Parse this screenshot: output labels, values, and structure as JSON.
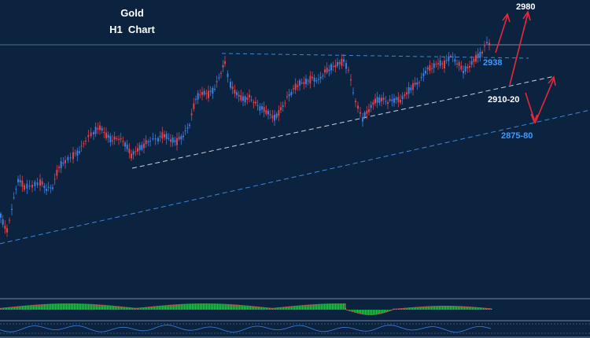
{
  "chart_data": {
    "type": "candlestick",
    "title": "Gold",
    "subtitle": "H1  Chart",
    "instrument": "Gold",
    "timeframe": "H1",
    "colors": {
      "background": "#0c2340",
      "bull": "#3d7fe0",
      "bear": "#e0414b",
      "support_line": "#c9d2dc",
      "channel_line": "#3f86d8",
      "arrow": "#e8283a",
      "label_white": "#ffffff",
      "label_blue": "#3d9bff",
      "histogram": "#2fbf5a"
    },
    "levels": [
      {
        "id": "target",
        "label": "2980",
        "price": 2980,
        "color": "white"
      },
      {
        "id": "resistance",
        "label": "2938",
        "price": 2938,
        "color": "blue"
      },
      {
        "id": "support",
        "label": "2910-20",
        "price": 2915,
        "color": "white"
      },
      {
        "id": "lower_support",
        "label": "2875-80",
        "price": 2877,
        "color": "blue"
      }
    ],
    "close_approx": 2955,
    "trendlines": [
      {
        "name": "resistance-trendline",
        "style": "dashed",
        "color": "blue"
      },
      {
        "name": "ascending-support",
        "style": "dashed",
        "color": "white"
      },
      {
        "name": "lower-channel",
        "style": "dashed",
        "color": "blue"
      }
    ],
    "arrows": [
      "up",
      "up",
      "down",
      "up"
    ],
    "indicator_panels": [
      "histogram-oscillator",
      "line-oscillator"
    ]
  }
}
